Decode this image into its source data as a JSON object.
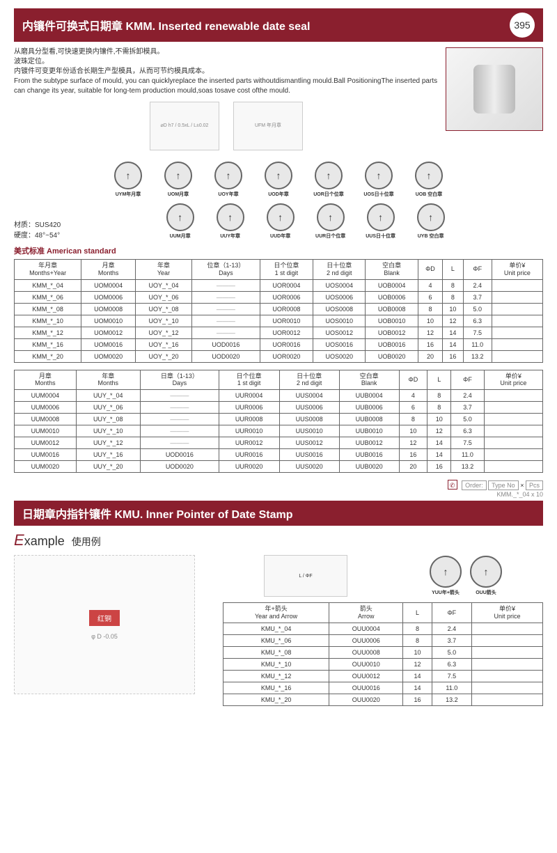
{
  "header1": {
    "title": "内镶件可换式日期章 KMM. Inserted renewable date seal",
    "page": "395"
  },
  "intro": {
    "cn1": "从磨具分型看,可快速更换内镶件,不需拆卸模具。",
    "cn2": "波珠定位。",
    "cn3": "内镀件可变更年份适合长期生产型模具，从而可节约模具成本。",
    "en": "From the subtype surface of mould, you can quicklyreplace the inserted parts withoutdismantling mould.Ball PositioningThe inserted parts can change its year, suitable for long-tem production mould,soas tosave cost ofthe mould."
  },
  "diag_labels": {
    "left": "⌀D h7 / 0.5xL / L±0.02",
    "right": "UFM 年月章"
  },
  "seals_row1": [
    {
      "label": "UYM年月章"
    },
    {
      "label": "UOM月章"
    },
    {
      "label": "UOY年章"
    },
    {
      "label": "UOD年章"
    },
    {
      "label": "UOR日个位章"
    },
    {
      "label": "UOS日十位章"
    },
    {
      "label": "UOB 空白章"
    }
  ],
  "seals_row2": [
    {
      "label": "UUM月章"
    },
    {
      "label": "UUY年章"
    },
    {
      "label": "UUD年章"
    },
    {
      "label": "UUR日个位章"
    },
    {
      "label": "UUS日十位章"
    },
    {
      "label": "UYB 空白章"
    }
  ],
  "material": {
    "line1": "材质：SUS420",
    "line2": "硬度：48°~54°"
  },
  "standard": "美式标准  American standard",
  "table1": {
    "headers": [
      "年月章\nMonths+Year",
      "月章\nMonths",
      "年章\nYear",
      "位章（1-13）\nDays",
      "日个位章\n1 st digit",
      "日十位章\n2 nd digit",
      "空白章\nBlank",
      "ΦD",
      "L",
      "ΦF",
      "单价¥\nUnit price"
    ],
    "rows": [
      [
        "KMM_*_04",
        "UOM0004",
        "UOY_*_04",
        "———",
        "UOR0004",
        "UOS0004",
        "UOB0004",
        "4",
        "8",
        "2.4",
        ""
      ],
      [
        "KMM_*_06",
        "UOM0006",
        "UOY_*_06",
        "———",
        "UOR0006",
        "UOS0006",
        "UOB0006",
        "6",
        "8",
        "3.7",
        ""
      ],
      [
        "KMM_*_08",
        "UOM0008",
        "UOY_*_08",
        "———",
        "UOR0008",
        "UOS0008",
        "UOB0008",
        "8",
        "10",
        "5.0",
        ""
      ],
      [
        "KMM_*_10",
        "UOM0010",
        "UOY_*_10",
        "———",
        "UOR0010",
        "UOS0010",
        "UOB0010",
        "10",
        "12",
        "6.3",
        ""
      ],
      [
        "KMM_*_12",
        "UOM0012",
        "UOY_*_12",
        "———",
        "UOR0012",
        "UOS0012",
        "UOB0012",
        "12",
        "14",
        "7.5",
        ""
      ],
      [
        "KMM_*_16",
        "UOM0016",
        "UOY_*_16",
        "UOD0016",
        "UOR0016",
        "UOS0016",
        "UOB0016",
        "16",
        "14",
        "11.0",
        ""
      ],
      [
        "KMM_*_20",
        "UOM0020",
        "UOY_*_20",
        "UOD0020",
        "UOR0020",
        "UOS0020",
        "UOB0020",
        "20",
        "16",
        "13.2",
        ""
      ]
    ]
  },
  "table2": {
    "headers": [
      "月章\nMonths",
      "年章\nMonths",
      "日章（1-13）\nDays",
      "日个位章\n1 st digit",
      "日十位章\n2 nd digit",
      "空白章\nBlank",
      "ΦD",
      "L",
      "ΦF",
      "单价¥\nUnit price"
    ],
    "rows": [
      [
        "UUM0004",
        "UUY_*_04",
        "———",
        "UUR0004",
        "UUS0004",
        "UUB0004",
        "4",
        "8",
        "2.4",
        ""
      ],
      [
        "UUM0006",
        "UUY_*_06",
        "———",
        "UUR0006",
        "UUS0006",
        "UUB0006",
        "6",
        "8",
        "3.7",
        ""
      ],
      [
        "UUM0008",
        "UUY_*_08",
        "———",
        "UUR0008",
        "UUS0008",
        "UUB0008",
        "8",
        "10",
        "5.0",
        ""
      ],
      [
        "UUM0010",
        "UUY_*_10",
        "———",
        "UUR0010",
        "UUS0010",
        "UUB0010",
        "10",
        "12",
        "6.3",
        ""
      ],
      [
        "UUM0012",
        "UUY_*_12",
        "———",
        "UUR0012",
        "UUS0012",
        "UUB0012",
        "12",
        "14",
        "7.5",
        ""
      ],
      [
        "UUM0016",
        "UUY_*_16",
        "UOD0016",
        "UUR0016",
        "UUS0016",
        "UUB0016",
        "16",
        "14",
        "11.0",
        ""
      ],
      [
        "UUM0020",
        "UUY_*_20",
        "UOD0020",
        "UUR0020",
        "UUS0020",
        "UUB0020",
        "20",
        "16",
        "13.2",
        ""
      ]
    ]
  },
  "order": {
    "label_order": "Order:",
    "label_type": "Type No",
    "x": "×",
    "label_pcs": "Pcs",
    "example": "KMM._*_04  x  10"
  },
  "header2": {
    "title": "日期章内指针镶件 KMU. Inner Pointer of Date Stamp"
  },
  "example": {
    "title_e": "E",
    "title_rest": "xample",
    "cn": "使用例",
    "red": "红铜",
    "diag_label": "φ D -0.05"
  },
  "kmu_seals": [
    {
      "label": "YUU年+箭头"
    },
    {
      "label": "OUU箭头"
    }
  ],
  "kmu_diag": "L / ΦF",
  "table3": {
    "headers": [
      "年+箭头\nYear and Arrow",
      "箭头\nArrow",
      "L",
      "ΦF",
      "单价¥\nUnit price"
    ],
    "rows": [
      [
        "KMU_*_04",
        "OUU0004",
        "8",
        "2.4",
        ""
      ],
      [
        "KMU_*_06",
        "OUU0006",
        "8",
        "3.7",
        ""
      ],
      [
        "KMU_*_08",
        "OUU0008",
        "10",
        "5.0",
        ""
      ],
      [
        "KMU_*_10",
        "OUU0010",
        "12",
        "6.3",
        ""
      ],
      [
        "KMU_*_12",
        "OUU0012",
        "14",
        "7.5",
        ""
      ],
      [
        "KMU_*_16",
        "OUU0016",
        "14",
        "11.0",
        ""
      ],
      [
        "KMU_*_20",
        "OUU0020",
        "16",
        "13.2",
        ""
      ]
    ]
  }
}
